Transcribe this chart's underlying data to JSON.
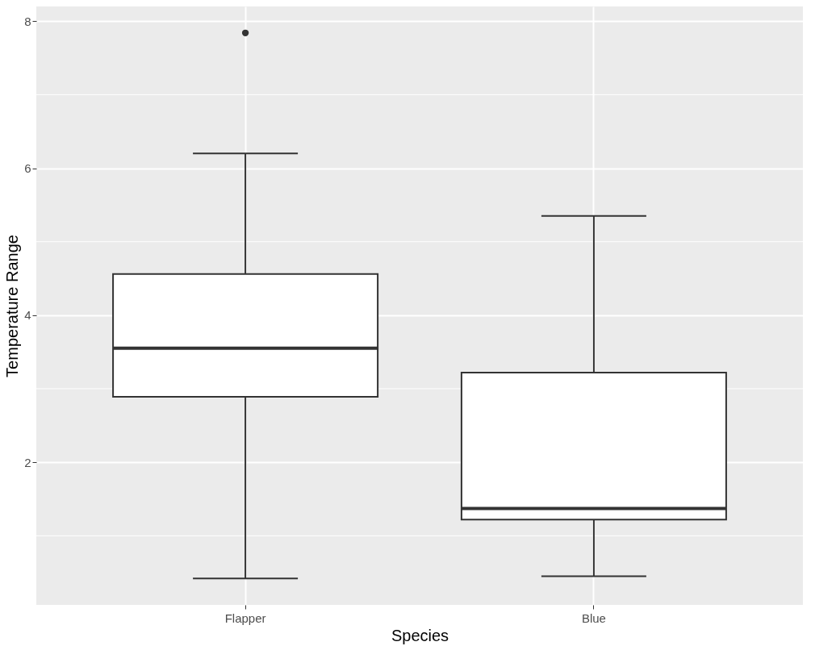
{
  "chart_data": {
    "type": "box",
    "xlabel": "Species",
    "ylabel": "Temperature Range",
    "categories": [
      "Flapper",
      "Blue"
    ],
    "boxes": [
      {
        "low": 0.42,
        "q1": 2.89,
        "median": 3.55,
        "q3": 4.56,
        "high": 6.2,
        "outliers": [
          7.84
        ]
      },
      {
        "low": 0.45,
        "q1": 1.22,
        "median": 1.37,
        "q3": 3.22,
        "high": 5.35
      }
    ],
    "ylim": [
      0.06,
      8.2
    ],
    "yticks": [
      2,
      4,
      6,
      8
    ],
    "grid": true
  }
}
